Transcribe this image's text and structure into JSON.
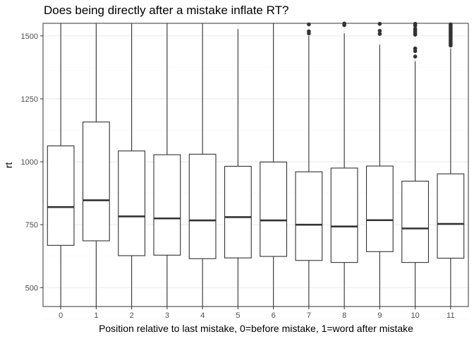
{
  "chart_data": {
    "type": "boxplot",
    "title": "Does being directly after a mistake inflate RT?",
    "xlabel": "Position relative to last mistake, 0=before mistake, 1=word after mistake",
    "ylabel": "rt",
    "ylim": [
      425,
      1550
    ],
    "yticks": [
      500,
      750,
      1000,
      1250,
      1500
    ],
    "grid": true,
    "categories": [
      "0",
      "1",
      "2",
      "3",
      "4",
      "5",
      "6",
      "7",
      "8",
      "9",
      "10",
      "11"
    ],
    "boxes": [
      {
        "category": "0",
        "lower_whisker": 425,
        "q1": 668,
        "median": 820,
        "q3": 1063,
        "upper_whisker": 1550,
        "outliers": []
      },
      {
        "category": "1",
        "lower_whisker": 425,
        "q1": 686,
        "median": 847,
        "q3": 1158,
        "upper_whisker": 1550,
        "outliers": []
      },
      {
        "category": "2",
        "lower_whisker": 425,
        "q1": 627,
        "median": 783,
        "q3": 1043,
        "upper_whisker": 1550,
        "outliers": []
      },
      {
        "category": "3",
        "lower_whisker": 425,
        "q1": 629,
        "median": 775,
        "q3": 1028,
        "upper_whisker": 1550,
        "outliers": []
      },
      {
        "category": "4",
        "lower_whisker": 425,
        "q1": 615,
        "median": 767,
        "q3": 1030,
        "upper_whisker": 1550,
        "outliers": []
      },
      {
        "category": "5",
        "lower_whisker": 425,
        "q1": 618,
        "median": 780,
        "q3": 982,
        "upper_whisker": 1527,
        "outliers": []
      },
      {
        "category": "6",
        "lower_whisker": 425,
        "q1": 624,
        "median": 767,
        "q3": 999,
        "upper_whisker": 1550,
        "outliers": []
      },
      {
        "category": "7",
        "lower_whisker": 425,
        "q1": 608,
        "median": 750,
        "q3": 960,
        "upper_whisker": 1500,
        "outliers": [
          1510,
          1518,
          1546
        ]
      },
      {
        "category": "8",
        "lower_whisker": 425,
        "q1": 600,
        "median": 743,
        "q3": 975,
        "upper_whisker": 1510,
        "outliers": [
          1543,
          1549
        ]
      },
      {
        "category": "9",
        "lower_whisker": 425,
        "q1": 643,
        "median": 768,
        "q3": 983,
        "upper_whisker": 1465,
        "outliers": [
          1508,
          1520,
          1548
        ]
      },
      {
        "category": "10",
        "lower_whisker": 425,
        "q1": 600,
        "median": 735,
        "q3": 923,
        "upper_whisker": 1400,
        "outliers": [
          1418,
          1440,
          1450,
          1505,
          1512,
          1520,
          1528,
          1540,
          1548
        ]
      },
      {
        "category": "11",
        "lower_whisker": 425,
        "q1": 617,
        "median": 753,
        "q3": 952,
        "upper_whisker": 1450,
        "outliers": [
          1462,
          1468,
          1474,
          1480,
          1486,
          1492,
          1498,
          1504,
          1510,
          1516,
          1522,
          1528,
          1534,
          1540,
          1546
        ]
      }
    ],
    "colors": {
      "box_fill": "#ffffff",
      "box_stroke": "#333333",
      "grid_major": "#ebebeb",
      "grid_minor": "#f5f5f5",
      "panel_border": "#333333"
    }
  }
}
